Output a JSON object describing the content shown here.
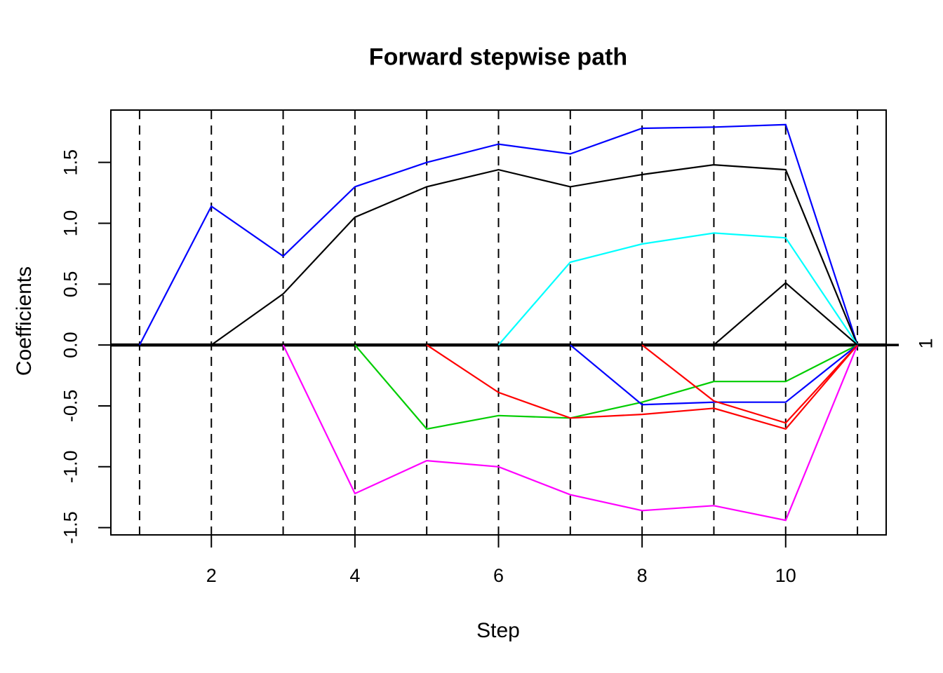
{
  "chart_data": {
    "type": "line",
    "title": "Forward stepwise path",
    "xlabel": "Step",
    "ylabel": "Coefficients",
    "right_axis_label": "1",
    "right_axis_label_at": 0,
    "xlim": [
      0.6,
      11.4
    ],
    "ylim": [
      -1.56,
      1.93
    ],
    "x_ticks": [
      2,
      4,
      6,
      8,
      10
    ],
    "x_tick_labels": [
      "2",
      "4",
      "6",
      "8",
      "10"
    ],
    "y_ticks": [
      -1.5,
      -1.0,
      -0.5,
      0.0,
      0.5,
      1.0,
      1.5
    ],
    "y_tick_labels": [
      "-1.5",
      "-1.0",
      "-0.5",
      "0.0",
      "0.5",
      "1.0",
      "1.5"
    ],
    "grid": {
      "vertical_dashed_lines_at": [
        1,
        2,
        3,
        4,
        5,
        6,
        7,
        8,
        9,
        10,
        11
      ],
      "color": "#000000",
      "style": "dashed"
    },
    "zero_line": {
      "y": 0,
      "color": "#000000"
    },
    "legend": "none",
    "series": [
      {
        "name": "path-blue-1",
        "color": "#0000FF",
        "points": [
          [
            1,
            0
          ],
          [
            2,
            1.14
          ],
          [
            3,
            0.73
          ],
          [
            4,
            1.3
          ],
          [
            5,
            1.5
          ],
          [
            6,
            1.65
          ],
          [
            7,
            1.57
          ],
          [
            8,
            1.78
          ],
          [
            9,
            1.79
          ],
          [
            10,
            1.81
          ],
          [
            11,
            0
          ]
        ]
      },
      {
        "name": "path-black-1",
        "color": "#000000",
        "points": [
          [
            2,
            0
          ],
          [
            3,
            0.42
          ],
          [
            4,
            1.05
          ],
          [
            5,
            1.3
          ],
          [
            6,
            1.44
          ],
          [
            7,
            1.3
          ],
          [
            8,
            1.4
          ],
          [
            9,
            1.48
          ],
          [
            10,
            1.44
          ],
          [
            11,
            0
          ]
        ]
      },
      {
        "name": "path-magenta",
        "color": "#FF00FF",
        "points": [
          [
            3,
            0
          ],
          [
            4,
            -1.22
          ],
          [
            5,
            -0.95
          ],
          [
            6,
            -1.0
          ],
          [
            7,
            -1.23
          ],
          [
            8,
            -1.36
          ],
          [
            9,
            -1.32
          ],
          [
            10,
            -1.44
          ],
          [
            11,
            0
          ]
        ]
      },
      {
        "name": "path-green",
        "color": "#00CD00",
        "points": [
          [
            4,
            0
          ],
          [
            5,
            -0.69
          ],
          [
            6,
            -0.58
          ],
          [
            7,
            -0.6
          ],
          [
            8,
            -0.47
          ],
          [
            9,
            -0.3
          ],
          [
            10,
            -0.3
          ],
          [
            11,
            0
          ]
        ]
      },
      {
        "name": "path-red-1",
        "color": "#FF0000",
        "points": [
          [
            5,
            0
          ],
          [
            6,
            -0.39
          ],
          [
            7,
            -0.6
          ],
          [
            8,
            -0.57
          ],
          [
            9,
            -0.52
          ],
          [
            10,
            -0.69
          ],
          [
            11,
            0
          ]
        ]
      },
      {
        "name": "path-cyan",
        "color": "#00FFFF",
        "points": [
          [
            6,
            0
          ],
          [
            7,
            0.68
          ],
          [
            8,
            0.83
          ],
          [
            9,
            0.92
          ],
          [
            10,
            0.88
          ],
          [
            11,
            0
          ]
        ]
      },
      {
        "name": "path-blue-2",
        "color": "#0000FF",
        "points": [
          [
            7,
            0
          ],
          [
            8,
            -0.49
          ],
          [
            9,
            -0.47
          ],
          [
            10,
            -0.47
          ],
          [
            11,
            0
          ]
        ]
      },
      {
        "name": "path-red-2",
        "color": "#FF0000",
        "points": [
          [
            8,
            0
          ],
          [
            9,
            -0.46
          ],
          [
            10,
            -0.64
          ],
          [
            11,
            0
          ]
        ]
      },
      {
        "name": "path-black-2",
        "color": "#000000",
        "points": [
          [
            9,
            0
          ],
          [
            10,
            0.51
          ],
          [
            11,
            0
          ]
        ]
      }
    ]
  }
}
